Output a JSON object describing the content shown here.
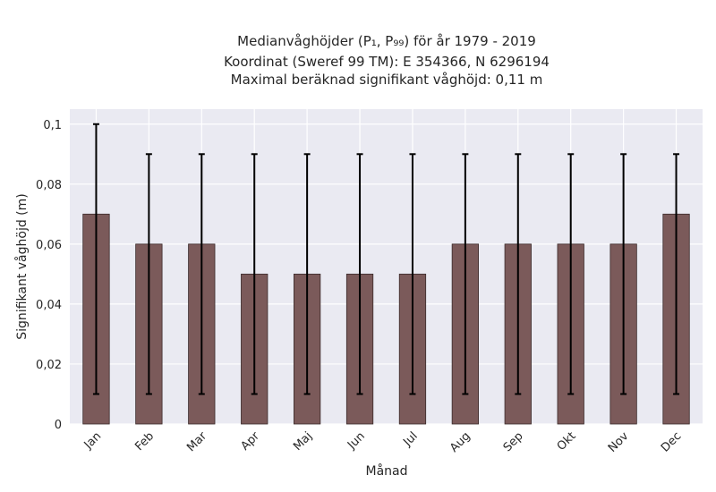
{
  "chart_data": {
    "type": "bar",
    "title_lines": [
      "Medianvåghöjder (P₁, P₉₉) för år 1979 - 2019",
      "Koordinat (Sweref 99 TM): E 354366, N 6296194",
      "Maximal beräknad signifikant våghöjd: 0,11 m"
    ],
    "xlabel": "Månad",
    "ylabel": "Signifikant våghöjd (m)",
    "categories": [
      "Jan",
      "Feb",
      "Mar",
      "Apr",
      "Maj",
      "Jun",
      "Jul",
      "Aug",
      "Sep",
      "Okt",
      "Nov",
      "Dec"
    ],
    "series": [
      {
        "values": [
          0.07,
          0.06,
          0.06,
          0.05,
          0.05,
          0.05,
          0.05,
          0.06,
          0.06,
          0.06,
          0.06,
          0.07
        ],
        "err_low": [
          0.01,
          0.01,
          0.01,
          0.01,
          0.01,
          0.01,
          0.01,
          0.01,
          0.01,
          0.01,
          0.01,
          0.01
        ],
        "err_high": [
          0.1,
          0.09,
          0.09,
          0.09,
          0.09,
          0.09,
          0.09,
          0.09,
          0.09,
          0.09,
          0.09,
          0.09
        ]
      }
    ],
    "yticks": [
      0,
      0.02,
      0.04,
      0.06,
      0.08,
      0.1
    ],
    "ytick_labels": [
      "0",
      "0,02",
      "0,04",
      "0,06",
      "0,08",
      "0,1"
    ],
    "ylim": [
      0,
      0.105
    ],
    "grid": true,
    "colors": {
      "bar": "#7b5a5a",
      "bar_edge": "#3a2a2a",
      "errorbar": "#000000",
      "plot_bg": "#eaeaf2",
      "grid": "#ffffff"
    }
  }
}
